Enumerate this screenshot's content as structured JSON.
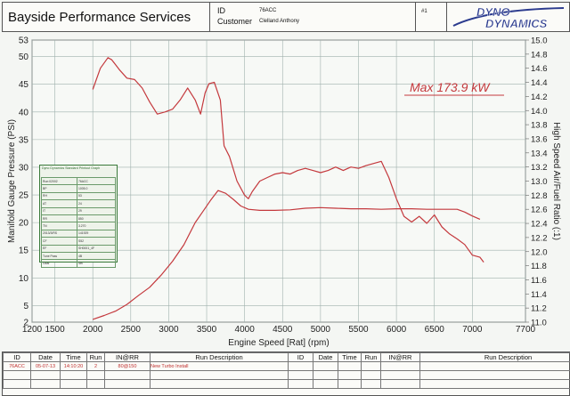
{
  "header": {
    "shop_name": "Bayside Performance Services",
    "id_label": "ID",
    "id_value": "76ACC",
    "customer_label": "Customer",
    "customer_value": "Clelland Anthony",
    "page_no": "#1",
    "logo_top": "DYNO",
    "logo_bottom": "DYNAMICS"
  },
  "chart_data": {
    "type": "line",
    "xlabel": "Engine Speed [Rat] (rpm)",
    "ylabel": "Manifold Gauge Pressure (PSI)",
    "y2label": "High Speed Air/Fuel Ratio (:1)",
    "annotation": "Max 173.9 kW",
    "xlim": [
      1200,
      7700
    ],
    "ylim": [
      2,
      53
    ],
    "y2lim": [
      11.0,
      15.0
    ],
    "x_ticks": [
      1200,
      1500,
      2000,
      2500,
      3000,
      3500,
      4000,
      4500,
      5000,
      5500,
      6000,
      6500,
      7000,
      7700
    ],
    "y_ticks": [
      2,
      5,
      10,
      15,
      20,
      25,
      30,
      35,
      40,
      45,
      50,
      53
    ],
    "y2_ticks": [
      "11.0",
      "11.2",
      "11.4",
      "11.6",
      "11.8",
      "12.0",
      "12.2",
      "12.4",
      "12.6",
      "12.8",
      "13.0",
      "13.2",
      "13.4",
      "13.6",
      "13.8",
      "14.0",
      "14.2",
      "14.4",
      "14.6",
      "14.8",
      "15.0"
    ],
    "grid": true,
    "series": [
      {
        "axis": "right",
        "color": "#c4393d",
        "x": [
          2000,
          2100,
          2200,
          2250,
          2350,
          2450,
          2550,
          2650,
          2750,
          2850,
          2950,
          3050,
          3150,
          3250,
          3350,
          3420,
          3480,
          3530,
          3600,
          3680,
          3730,
          3800,
          3900,
          4000,
          4050,
          4100,
          4200,
          4300,
          4400,
          4500,
          4600,
          4700,
          4800,
          4900,
          5000,
          5100,
          5200,
          5300,
          5400,
          5500,
          5600,
          5700,
          5800,
          5900,
          6000,
          6100,
          6200,
          6300,
          6400,
          6500,
          6600,
          6700,
          6800,
          6900,
          7000,
          7100,
          7150
        ],
        "values": [
          14.3,
          14.6,
          14.75,
          14.72,
          14.58,
          14.46,
          14.44,
          14.32,
          14.12,
          13.95,
          13.98,
          14.02,
          14.15,
          14.32,
          14.15,
          13.95,
          14.25,
          14.38,
          14.4,
          14.15,
          13.5,
          13.35,
          13.0,
          12.8,
          12.75,
          12.85,
          13.0,
          13.05,
          13.1,
          13.12,
          13.1,
          13.15,
          13.18,
          13.15,
          13.12,
          13.15,
          13.2,
          13.15,
          13.2,
          13.18,
          13.22,
          13.25,
          13.28,
          13.05,
          12.75,
          12.5,
          12.42,
          12.5,
          12.4,
          12.52,
          12.35,
          12.25,
          12.18,
          12.1,
          11.95,
          11.92,
          11.85
        ]
      },
      {
        "axis": "left",
        "color": "#c4393d",
        "x": [
          2000,
          2150,
          2300,
          2450,
          2600,
          2750,
          2900,
          3050,
          3200,
          3350,
          3450,
          3550,
          3650,
          3750,
          3850,
          3950,
          4050,
          4200,
          4400,
          4600,
          4800,
          5000,
          5200,
          5400,
          5600,
          5800,
          6000,
          6200,
          6400,
          6600,
          6800,
          6900,
          7000,
          7100
        ],
        "values": [
          2.5,
          3.2,
          4.0,
          5.2,
          6.8,
          8.3,
          10.5,
          13.0,
          16.0,
          20.0,
          22.0,
          24.0,
          25.8,
          25.3,
          24.2,
          23.0,
          22.4,
          22.2,
          22.2,
          22.3,
          22.6,
          22.7,
          22.6,
          22.5,
          22.5,
          22.4,
          22.5,
          22.5,
          22.4,
          22.4,
          22.4,
          21.9,
          21.2,
          20.6
        ]
      }
    ]
  },
  "run_info": {
    "title": "Dyno Dynamics Standard Printout Graph",
    "rows": [
      [
        "Run:02002",
        "76ACC"
      ],
      [
        "BP",
        "1005.0"
      ],
      [
        "RH",
        "53"
      ],
      [
        "AT",
        "24"
      ],
      [
        "IT",
        "29"
      ],
      [
        "RR",
        "850"
      ],
      [
        "TN",
        "3.270"
      ],
      [
        "2013/3/RS",
        "141929"
      ],
      [
        "CF",
        "S52"
      ],
      [
        "EF",
        "SH0001_4F"
      ],
      [
        "Tune Pass",
        "4B"
      ],
      [
        "Gear",
        "4th"
      ]
    ]
  },
  "footer": {
    "headers": [
      "ID",
      "Date",
      "Time",
      "Run",
      "IN@RR",
      "Run Description",
      "ID",
      "Date",
      "Time",
      "Run",
      "IN@RR",
      "Run Description"
    ],
    "rows": [
      [
        "76ACC",
        "05-07-13",
        "14:10:20",
        "2",
        "80@150",
        "New Turbo Install",
        "",
        "",
        "",
        "",
        "",
        ""
      ],
      [
        "",
        "",
        "",
        "",
        "",
        "",
        "",
        "",
        "",
        "",
        "",
        ""
      ],
      [
        "",
        "",
        "",
        "",
        "",
        "",
        "",
        "",
        "",
        "",
        "",
        ""
      ]
    ]
  }
}
